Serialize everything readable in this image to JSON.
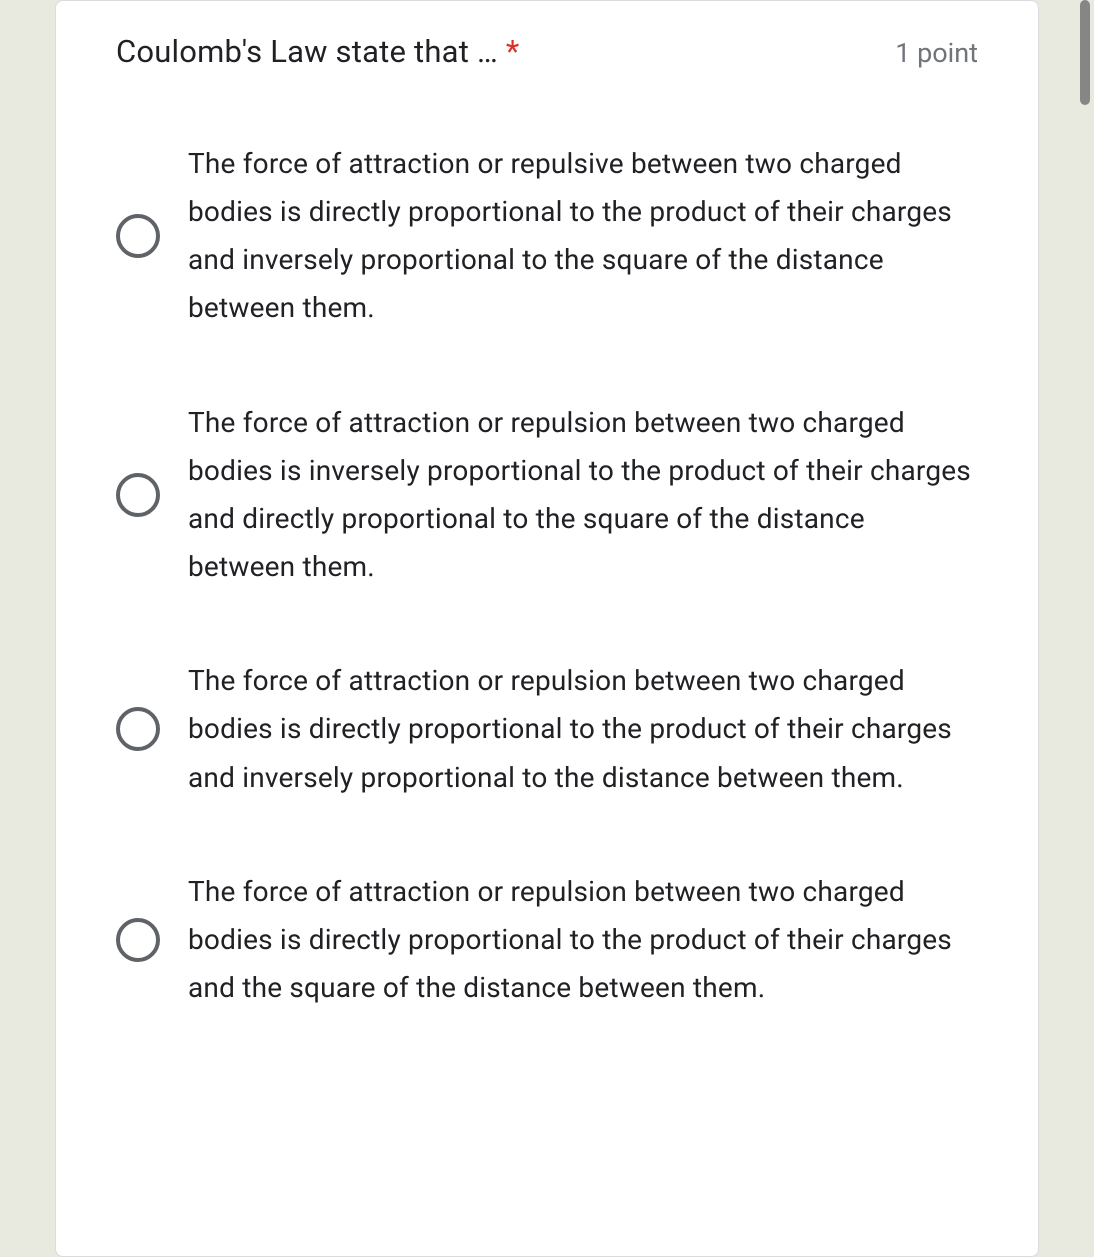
{
  "question": {
    "title": "Coulomb's Law state that …",
    "required": true,
    "points_label": "1 point"
  },
  "options": [
    {
      "text": "The force of attraction or repulsive between two charged bodies is directly proportional to the product of their charges and inversely proportional to the square of the distance between them."
    },
    {
      "text": "The force of attraction or repulsion between two charged bodies is inversely proportional to the product of their charges and directly proportional to the square of the distance between them."
    },
    {
      "text": "The force of attraction or repulsion between two charged bodies is directly proportional to the product of their charges and inversely proportional to the distance between them."
    },
    {
      "text": "The force of attraction or repulsion between two charged bodies is directly proportional to the product of their charges and the square of the distance between them."
    }
  ],
  "colors": {
    "background": "#e8eae0",
    "card_background": "#ffffff",
    "card_border": "#dadce0",
    "text_primary": "#202124",
    "text_secondary": "#70757a",
    "required": "#d93025",
    "radio_border": "#5f6368",
    "scrollbar": "#868686"
  },
  "typography": {
    "title_fontsize": 31,
    "points_fontsize": 27,
    "option_fontsize": 28,
    "option_lineheight": 1.72
  }
}
